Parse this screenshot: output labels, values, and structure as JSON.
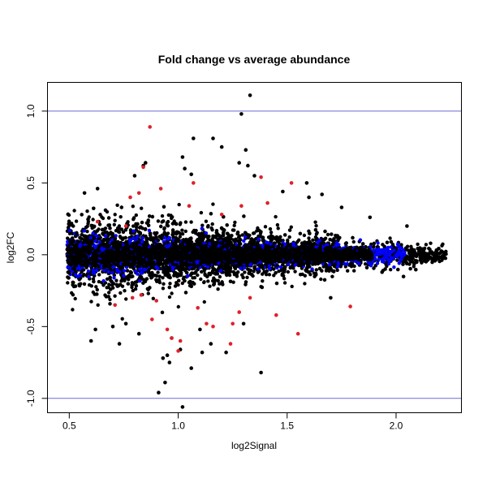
{
  "chart_data": {
    "type": "scatter",
    "title": "Fold change vs average abundance",
    "xlabel": "log2Signal",
    "ylabel": "log2FC",
    "xlim": [
      0.4,
      2.3
    ],
    "ylim": [
      -1.1,
      1.2
    ],
    "x_ticks": [
      0.5,
      1.0,
      1.5,
      2.0
    ],
    "x_tick_labels": [
      "0.5",
      "1.0",
      "1.5",
      "2.0"
    ],
    "y_ticks": [
      -1.0,
      -0.5,
      0.0,
      0.5,
      1.0
    ],
    "y_tick_labels": [
      "-1.0",
      "-0.5",
      "0.0",
      "0.5",
      "1.0"
    ],
    "reference_lines": [
      {
        "y": 1.0,
        "color": "#6b6bd6"
      },
      {
        "y": -1.0,
        "color": "#6b6bd6"
      }
    ],
    "series_colors": {
      "all": "#000000",
      "highlight_a": "#0000ff",
      "highlight_b": "#e0202a"
    },
    "series": [
      {
        "color": "#000000",
        "x": [
          1.33,
          1.29,
          1.02,
          1.07,
          1.16,
          1.03,
          0.85,
          0.84,
          1.06,
          0.8,
          1.2,
          1.31,
          1.28,
          1.32,
          1.35,
          1.59,
          1.48,
          1.66,
          1.6,
          0.63,
          0.57,
          1.38,
          0.91,
          0.94,
          1.02,
          1.06,
          0.6,
          0.73,
          0.93,
          0.96,
          1.11,
          1.01,
          1.15,
          1.22,
          0.7,
          0.82,
          0.95,
          0.97,
          1.88,
          1.7,
          1.75,
          2.12,
          2.15,
          2.2,
          2.05,
          1.95,
          0.62,
          0.76,
          1.1,
          1.3
        ],
        "y": [
          1.11,
          0.98,
          0.68,
          0.81,
          0.81,
          0.6,
          0.64,
          0.62,
          0.56,
          0.55,
          0.75,
          0.73,
          0.64,
          0.62,
          0.55,
          0.5,
          0.44,
          0.42,
          0.4,
          0.46,
          0.43,
          -0.82,
          -0.96,
          -0.89,
          -1.06,
          -0.79,
          -0.6,
          -0.62,
          -0.72,
          -0.75,
          -0.68,
          -0.66,
          -0.62,
          -0.68,
          -0.5,
          -0.55,
          -0.7,
          -0.58,
          0.26,
          -0.3,
          0.33,
          0.04,
          0.0,
          0.01,
          0.2,
          -0.1,
          -0.52,
          -0.48,
          -0.52,
          -0.48
        ]
      },
      {
        "color": "#e0202a",
        "x": [
          0.87,
          0.84,
          0.82,
          0.78,
          1.07,
          1.29,
          1.38,
          1.52,
          1.41,
          0.92,
          1.05,
          1.2,
          0.95,
          1.01,
          1.25,
          1.28,
          1.79,
          1.55,
          0.71,
          0.79,
          0.88,
          1.13,
          1.24,
          0.97,
          1.45,
          0.63,
          0.76,
          0.83,
          0.9,
          1.0,
          1.09,
          1.16,
          1.33
        ],
        "y": [
          0.89,
          0.61,
          0.43,
          0.4,
          0.5,
          0.34,
          0.54,
          0.5,
          0.36,
          0.46,
          0.34,
          0.28,
          -0.52,
          -0.6,
          -0.48,
          -0.4,
          -0.36,
          -0.55,
          -0.35,
          -0.3,
          -0.45,
          -0.48,
          -0.62,
          -0.58,
          -0.42,
          0.23,
          0.2,
          -0.28,
          -0.32,
          -0.67,
          -0.37,
          -0.5,
          -0.3
        ]
      }
    ]
  }
}
